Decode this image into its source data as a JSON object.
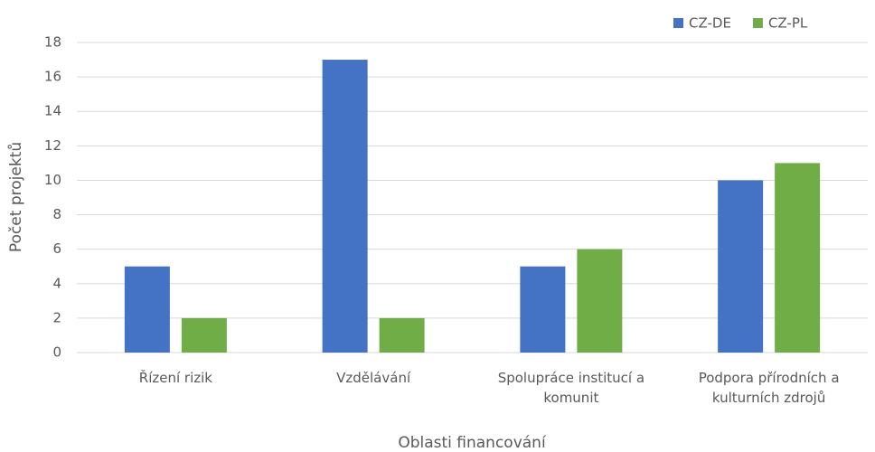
{
  "chart_data": {
    "type": "bar",
    "categories": [
      "Řízení rizik",
      "Vzdělávání",
      "Spolupráce institucí a komunit",
      "Podpora přírodních a kulturních zdrojů"
    ],
    "series": [
      {
        "name": "CZ-DE",
        "color": "#4472c4",
        "values": [
          5,
          17,
          5,
          10
        ]
      },
      {
        "name": "CZ-PL",
        "color": "#70ad47",
        "values": [
          2,
          2,
          6,
          11
        ]
      }
    ],
    "x_label": "Oblasti financování",
    "y_label": "Počet projektů",
    "ylim": [
      0,
      18
    ],
    "yticks": [
      0,
      2,
      4,
      6,
      8,
      10,
      12,
      14,
      16,
      18
    ],
    "grid": true,
    "legend": "top-right"
  }
}
